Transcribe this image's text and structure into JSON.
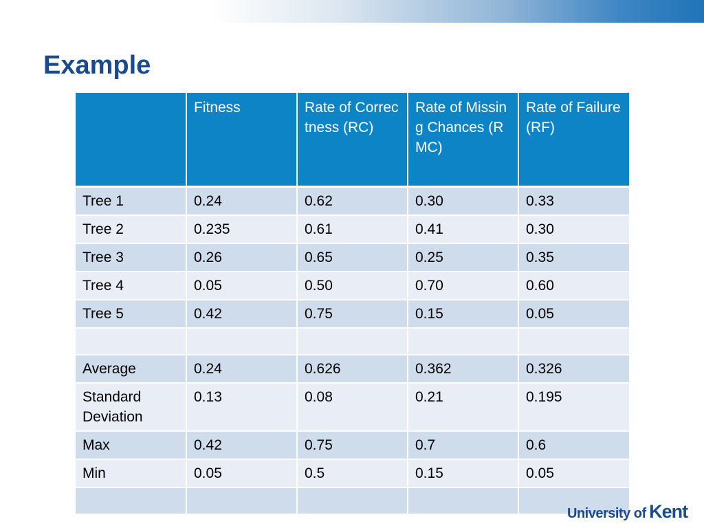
{
  "slide": {
    "title": "Example"
  },
  "table": {
    "headers": [
      "",
      "Fitness",
      "Rate of Correctness (RC)",
      "Rate of Missing Chances (RMC)",
      "Rate of Failure (RF)"
    ],
    "rows": [
      [
        "Tree 1",
        "0.24",
        "0.62",
        "0.30",
        "0.33"
      ],
      [
        "Tree 2",
        "0.235",
        "0.61",
        "0.41",
        "0.30"
      ],
      [
        "Tree 3",
        "0.26",
        "0.65",
        "0.25",
        "0.35"
      ],
      [
        "Tree 4",
        "0.05",
        "0.50",
        "0.70",
        "0.60"
      ],
      [
        "Tree 5",
        "0.42",
        "0.75",
        "0.15",
        "0.05"
      ],
      [
        "",
        "",
        "",
        "",
        ""
      ],
      [
        "Average",
        "0.24",
        "0.626",
        "0.362",
        "0.326"
      ],
      [
        "Standard Deviation",
        "0.13",
        "0.08",
        "0.21",
        "0.195"
      ],
      [
        "Max",
        "0.42",
        "0.75",
        "0.7",
        "0.6"
      ],
      [
        "Min",
        "0.05",
        "0.5",
        "0.15",
        "0.05"
      ],
      [
        "",
        "",
        "",
        "",
        ""
      ]
    ]
  },
  "footer": {
    "logo_text_1": "University of",
    "logo_text_2": "Kent"
  },
  "colors": {
    "title": "#1a4b8f",
    "header_bg": "#0d84c6",
    "row_dark": "#cfdcec",
    "row_light": "#e9eef6"
  }
}
